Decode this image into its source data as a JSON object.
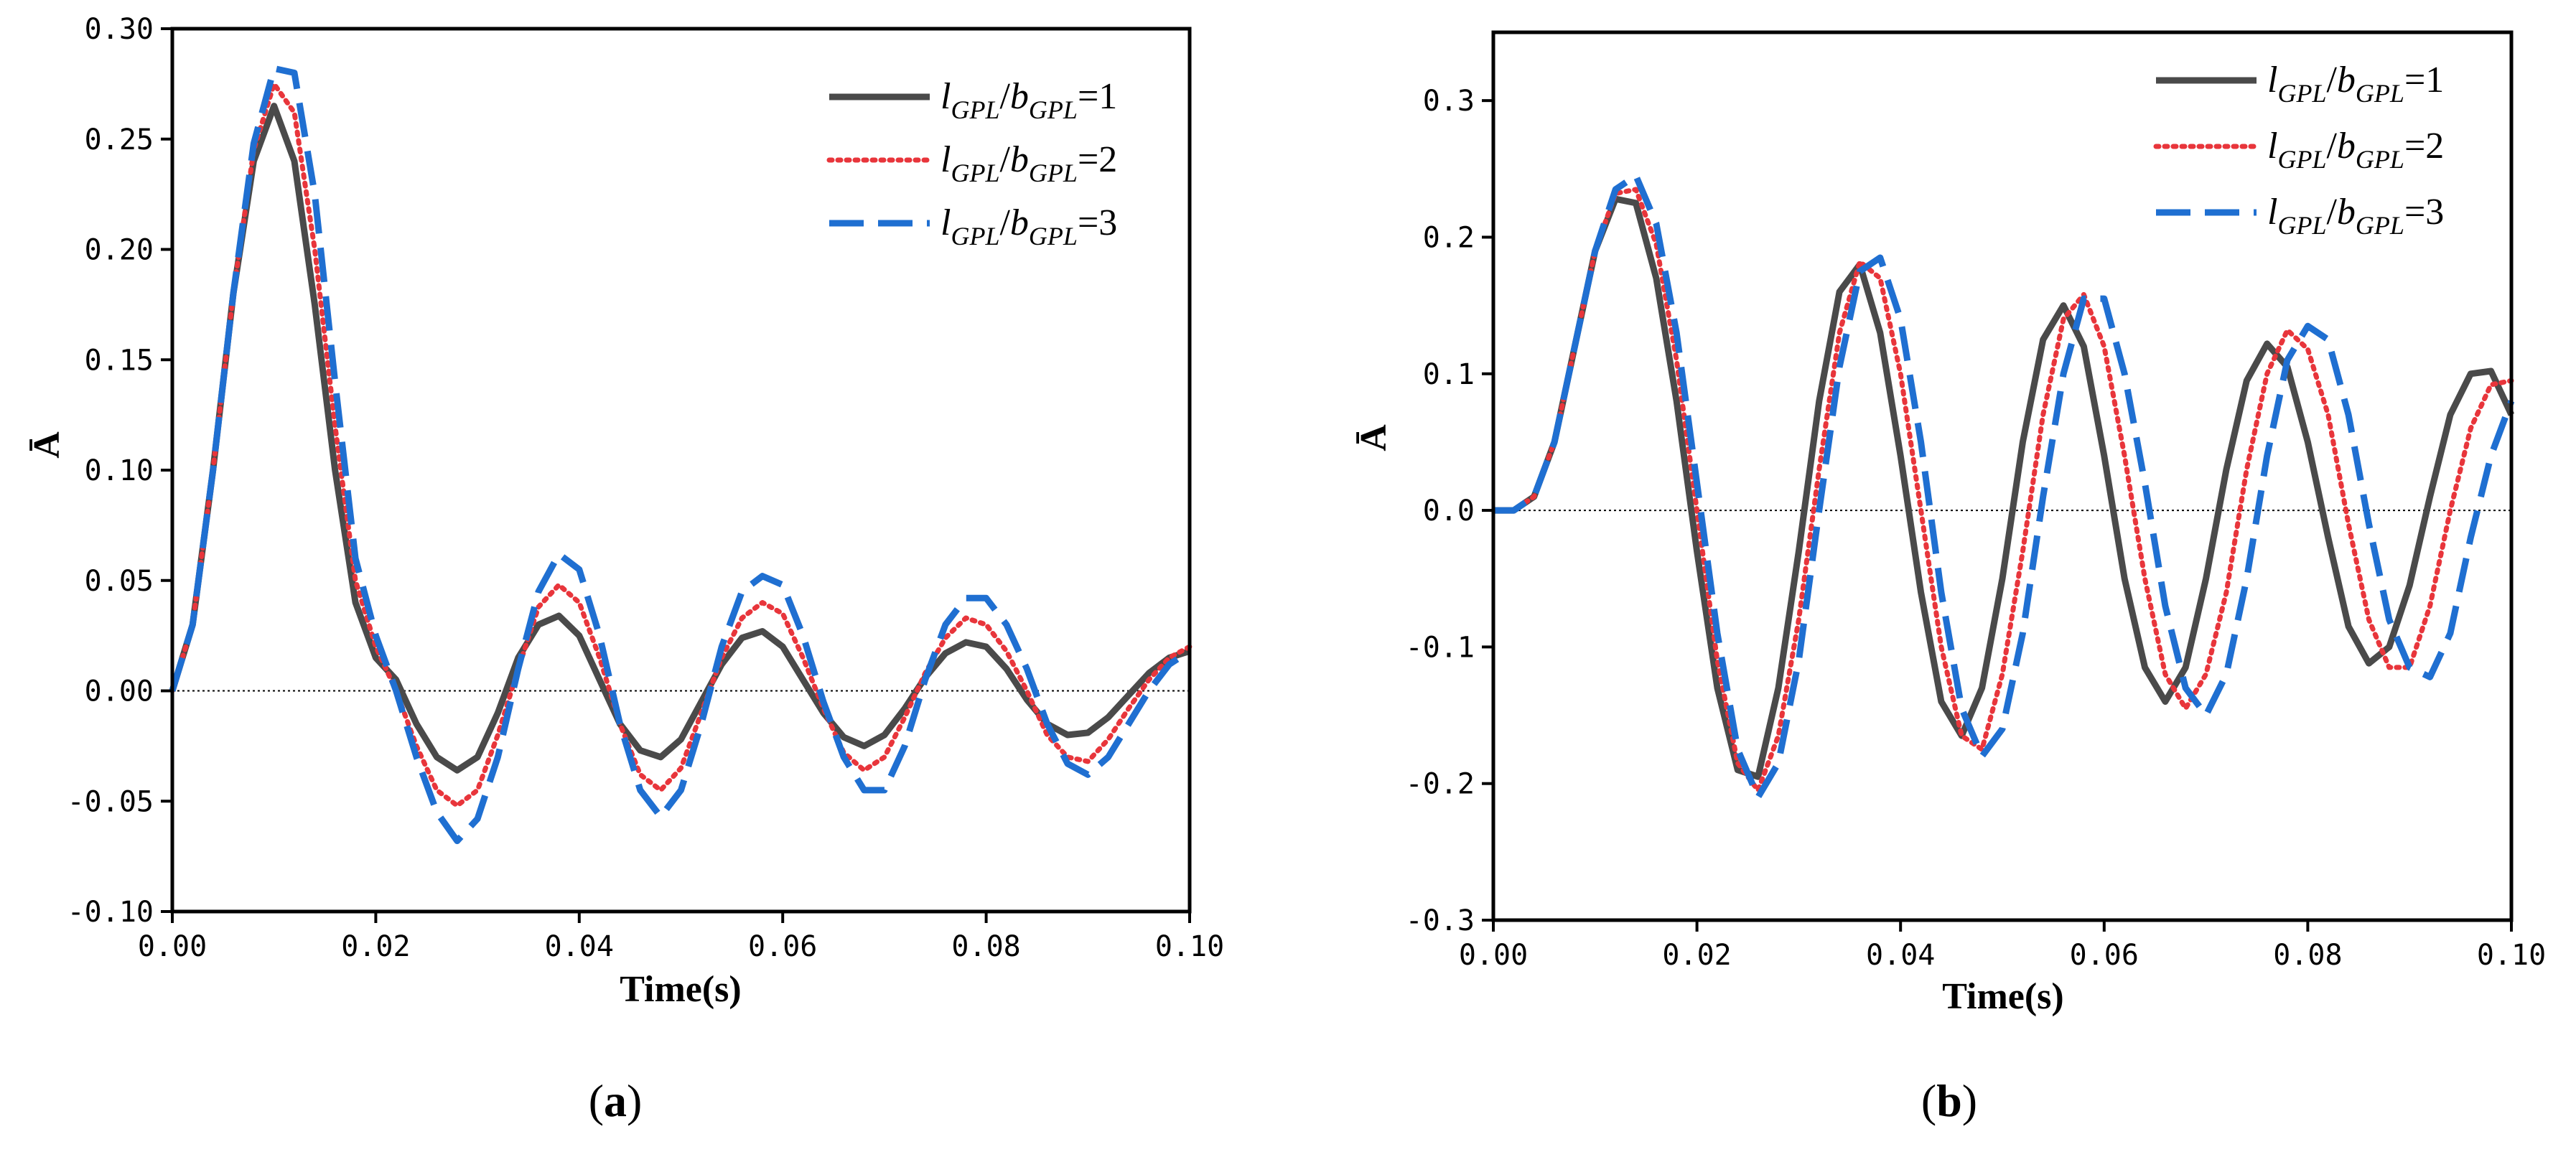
{
  "chart_data": [
    {
      "type": "line",
      "panel_label": "a",
      "xlabel": "Time(s)",
      "ylabel": "Ā",
      "xlim": [
        0.0,
        0.1
      ],
      "ylim": [
        -0.1,
        0.3
      ],
      "xticks": [
        "0.00",
        "0.02",
        "0.04",
        "0.06",
        "0.08",
        "0.10"
      ],
      "yticks": [
        "-0.10",
        "-0.05",
        "0.00",
        "0.05",
        "0.10",
        "0.15",
        "0.20",
        "0.25",
        "0.30"
      ],
      "xtick_values": [
        0.0,
        0.02,
        0.04,
        0.06,
        0.08,
        0.1
      ],
      "ytick_values": [
        -0.1,
        -0.05,
        0.0,
        0.05,
        0.1,
        0.15,
        0.2,
        0.25,
        0.3
      ],
      "zero_line": true,
      "legend_position": "top-right",
      "series": [
        {
          "name": "lGPL/bGPL=1",
          "legend": {
            "l": "l",
            "lsub": "GPL",
            "b": "b",
            "bsub": "GPL",
            "rest": "=1"
          },
          "color": "#4a4a4a",
          "style": "solid",
          "x": [
            0.0,
            0.002,
            0.004,
            0.006,
            0.008,
            0.01,
            0.012,
            0.014,
            0.016,
            0.018,
            0.02,
            0.022,
            0.024,
            0.026,
            0.028,
            0.03,
            0.032,
            0.034,
            0.036,
            0.038,
            0.04,
            0.042,
            0.044,
            0.046,
            0.048,
            0.05,
            0.052,
            0.054,
            0.056,
            0.058,
            0.06,
            0.062,
            0.064,
            0.066,
            0.068,
            0.07,
            0.072,
            0.074,
            0.076,
            0.078,
            0.08,
            0.082,
            0.084,
            0.086,
            0.088,
            0.09,
            0.092,
            0.094,
            0.096,
            0.098,
            0.1
          ],
          "y": [
            0.0,
            0.03,
            0.1,
            0.18,
            0.24,
            0.265,
            0.24,
            0.175,
            0.1,
            0.04,
            0.015,
            0.005,
            -0.015,
            -0.03,
            -0.036,
            -0.03,
            -0.01,
            0.015,
            0.03,
            0.034,
            0.025,
            0.005,
            -0.015,
            -0.027,
            -0.03,
            -0.022,
            -0.005,
            0.012,
            0.024,
            0.027,
            0.02,
            0.005,
            -0.01,
            -0.021,
            -0.025,
            -0.02,
            -0.008,
            0.006,
            0.017,
            0.022,
            0.02,
            0.01,
            -0.004,
            -0.015,
            -0.02,
            -0.019,
            -0.012,
            -0.002,
            0.008,
            0.015,
            0.018
          ]
        },
        {
          "name": "lGPL/bGPL=2",
          "legend": {
            "l": "l",
            "lsub": "GPL",
            "b": "b",
            "bsub": "GPL",
            "rest": "=2"
          },
          "color": "#e8353b",
          "style": "dotted",
          "x": [
            0.0,
            0.002,
            0.004,
            0.006,
            0.008,
            0.01,
            0.012,
            0.014,
            0.016,
            0.018,
            0.02,
            0.022,
            0.024,
            0.026,
            0.028,
            0.03,
            0.032,
            0.034,
            0.036,
            0.038,
            0.04,
            0.042,
            0.044,
            0.046,
            0.048,
            0.05,
            0.052,
            0.054,
            0.056,
            0.058,
            0.06,
            0.062,
            0.064,
            0.066,
            0.068,
            0.07,
            0.072,
            0.074,
            0.076,
            0.078,
            0.08,
            0.082,
            0.084,
            0.086,
            0.088,
            0.09,
            0.092,
            0.094,
            0.096,
            0.098,
            0.1
          ],
          "y": [
            0.0,
            0.03,
            0.1,
            0.18,
            0.245,
            0.275,
            0.262,
            0.2,
            0.12,
            0.05,
            0.02,
            0.0,
            -0.025,
            -0.045,
            -0.052,
            -0.045,
            -0.02,
            0.01,
            0.038,
            0.048,
            0.04,
            0.015,
            -0.015,
            -0.038,
            -0.045,
            -0.035,
            -0.01,
            0.015,
            0.033,
            0.04,
            0.035,
            0.015,
            -0.008,
            -0.028,
            -0.036,
            -0.03,
            -0.012,
            0.008,
            0.024,
            0.033,
            0.03,
            0.018,
            0.0,
            -0.02,
            -0.03,
            -0.032,
            -0.022,
            -0.008,
            0.005,
            0.015,
            0.02
          ]
        },
        {
          "name": "lGPL/bGPL=3",
          "legend": {
            "l": "l",
            "lsub": "GPL",
            "b": "b",
            "bsub": "GPL",
            "rest": "=3"
          },
          "color": "#1f6fd1",
          "style": "dashed",
          "x": [
            0.0,
            0.002,
            0.004,
            0.006,
            0.008,
            0.01,
            0.012,
            0.014,
            0.016,
            0.018,
            0.02,
            0.022,
            0.024,
            0.026,
            0.028,
            0.03,
            0.032,
            0.034,
            0.036,
            0.038,
            0.04,
            0.042,
            0.044,
            0.046,
            0.048,
            0.05,
            0.052,
            0.054,
            0.056,
            0.058,
            0.06,
            0.062,
            0.064,
            0.066,
            0.068,
            0.07,
            0.072,
            0.074,
            0.076,
            0.078,
            0.08,
            0.082,
            0.084,
            0.086,
            0.088,
            0.09,
            0.092,
            0.094,
            0.096,
            0.098,
            0.1
          ],
          "y": [
            0.0,
            0.03,
            0.1,
            0.18,
            0.248,
            0.282,
            0.28,
            0.225,
            0.14,
            0.06,
            0.025,
            0.0,
            -0.03,
            -0.055,
            -0.068,
            -0.058,
            -0.03,
            0.01,
            0.045,
            0.062,
            0.055,
            0.025,
            -0.015,
            -0.045,
            -0.057,
            -0.045,
            -0.015,
            0.02,
            0.045,
            0.052,
            0.048,
            0.025,
            -0.005,
            -0.03,
            -0.045,
            -0.045,
            -0.025,
            0.005,
            0.03,
            0.042,
            0.042,
            0.03,
            0.01,
            -0.015,
            -0.033,
            -0.038,
            -0.03,
            -0.015,
            0.0,
            0.012,
            0.018
          ]
        }
      ]
    },
    {
      "type": "line",
      "panel_label": "b",
      "xlabel": "Time(s)",
      "ylabel": "Ā",
      "xlim": [
        0.0,
        0.1
      ],
      "ylim": [
        -0.3,
        0.35
      ],
      "xticks": [
        "0.00",
        "0.02",
        "0.04",
        "0.06",
        "0.08",
        "0.10"
      ],
      "yticks": [
        "-0.3",
        "-0.2",
        "-0.1",
        "0.0",
        "0.1",
        "0.2",
        "0.3"
      ],
      "xtick_values": [
        0.0,
        0.02,
        0.04,
        0.06,
        0.08,
        0.1
      ],
      "ytick_values": [
        -0.3,
        -0.2,
        -0.1,
        0.0,
        0.1,
        0.2,
        0.3
      ],
      "zero_line": true,
      "legend_position": "top-right",
      "series": [
        {
          "name": "lGPL/bGPL=1",
          "legend": {
            "l": "l",
            "lsub": "GPL",
            "b": "b",
            "bsub": "GPL",
            "rest": "=1"
          },
          "color": "#4a4a4a",
          "style": "solid",
          "x": [
            0.0,
            0.002,
            0.004,
            0.006,
            0.008,
            0.01,
            0.012,
            0.014,
            0.016,
            0.018,
            0.02,
            0.022,
            0.024,
            0.026,
            0.028,
            0.03,
            0.032,
            0.034,
            0.036,
            0.038,
            0.04,
            0.042,
            0.044,
            0.046,
            0.048,
            0.05,
            0.052,
            0.054,
            0.056,
            0.058,
            0.06,
            0.062,
            0.064,
            0.066,
            0.068,
            0.07,
            0.072,
            0.074,
            0.076,
            0.078,
            0.08,
            0.082,
            0.084,
            0.086,
            0.088,
            0.09,
            0.092,
            0.094,
            0.096,
            0.098,
            0.1
          ],
          "y": [
            0.0,
            0.0,
            0.01,
            0.05,
            0.12,
            0.19,
            0.228,
            0.225,
            0.17,
            0.08,
            -0.03,
            -0.13,
            -0.19,
            -0.195,
            -0.13,
            -0.03,
            0.08,
            0.16,
            0.18,
            0.13,
            0.04,
            -0.06,
            -0.14,
            -0.165,
            -0.13,
            -0.05,
            0.05,
            0.125,
            0.15,
            0.12,
            0.04,
            -0.05,
            -0.115,
            -0.14,
            -0.115,
            -0.05,
            0.03,
            0.095,
            0.122,
            0.105,
            0.05,
            -0.02,
            -0.085,
            -0.112,
            -0.1,
            -0.055,
            0.01,
            0.07,
            0.1,
            0.102,
            0.07
          ]
        },
        {
          "name": "lGPL/bGPL=2",
          "legend": {
            "l": "l",
            "lsub": "GPL",
            "b": "b",
            "bsub": "GPL",
            "rest": "=2"
          },
          "color": "#e8353b",
          "style": "dotted",
          "x": [
            0.0,
            0.002,
            0.004,
            0.006,
            0.008,
            0.01,
            0.012,
            0.014,
            0.016,
            0.018,
            0.02,
            0.022,
            0.024,
            0.026,
            0.028,
            0.03,
            0.032,
            0.034,
            0.036,
            0.038,
            0.04,
            0.042,
            0.044,
            0.046,
            0.048,
            0.05,
            0.052,
            0.054,
            0.056,
            0.058,
            0.06,
            0.062,
            0.064,
            0.066,
            0.068,
            0.07,
            0.072,
            0.074,
            0.076,
            0.078,
            0.08,
            0.082,
            0.084,
            0.086,
            0.088,
            0.09,
            0.092,
            0.094,
            0.096,
            0.098,
            0.1
          ],
          "y": [
            0.0,
            0.0,
            0.01,
            0.05,
            0.12,
            0.19,
            0.232,
            0.235,
            0.195,
            0.11,
            0.0,
            -0.11,
            -0.185,
            -0.205,
            -0.165,
            -0.08,
            0.03,
            0.13,
            0.182,
            0.17,
            0.1,
            0.0,
            -0.1,
            -0.165,
            -0.175,
            -0.12,
            -0.03,
            0.07,
            0.14,
            0.158,
            0.12,
            0.04,
            -0.05,
            -0.12,
            -0.145,
            -0.12,
            -0.06,
            0.03,
            0.1,
            0.132,
            0.118,
            0.07,
            -0.01,
            -0.08,
            -0.115,
            -0.115,
            -0.07,
            0.0,
            0.06,
            0.092,
            0.095
          ]
        },
        {
          "name": "lGPL/bGPL=3",
          "legend": {
            "l": "l",
            "lsub": "GPL",
            "b": "b",
            "bsub": "GPL",
            "rest": "=3"
          },
          "color": "#1f6fd1",
          "style": "dashed",
          "x": [
            0.0,
            0.002,
            0.004,
            0.006,
            0.008,
            0.01,
            0.012,
            0.014,
            0.016,
            0.018,
            0.02,
            0.022,
            0.024,
            0.026,
            0.028,
            0.03,
            0.032,
            0.034,
            0.036,
            0.038,
            0.04,
            0.042,
            0.044,
            0.046,
            0.048,
            0.05,
            0.052,
            0.054,
            0.056,
            0.058,
            0.06,
            0.062,
            0.064,
            0.066,
            0.068,
            0.07,
            0.072,
            0.074,
            0.076,
            0.078,
            0.08,
            0.082,
            0.084,
            0.086,
            0.088,
            0.09,
            0.092,
            0.094,
            0.096,
            0.098,
            0.1
          ],
          "y": [
            0.0,
            0.0,
            0.01,
            0.05,
            0.12,
            0.19,
            0.235,
            0.245,
            0.21,
            0.13,
            0.02,
            -0.09,
            -0.175,
            -0.21,
            -0.185,
            -0.11,
            0.0,
            0.105,
            0.175,
            0.185,
            0.14,
            0.05,
            -0.06,
            -0.145,
            -0.18,
            -0.16,
            -0.09,
            0.01,
            0.1,
            0.155,
            0.155,
            0.1,
            0.02,
            -0.07,
            -0.13,
            -0.15,
            -0.12,
            -0.05,
            0.04,
            0.11,
            0.135,
            0.125,
            0.07,
            -0.01,
            -0.08,
            -0.115,
            -0.122,
            -0.09,
            -0.02,
            0.04,
            0.08
          ]
        }
      ]
    }
  ]
}
